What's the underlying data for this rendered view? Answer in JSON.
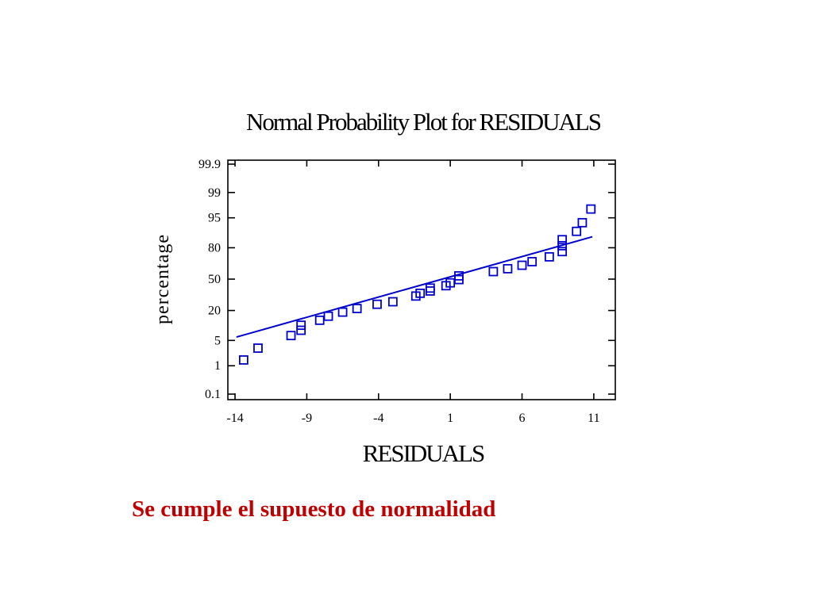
{
  "caption": "Se cumple el supuesto de normalidad",
  "colors": {
    "series": "#0000cc",
    "caption": "#c00000",
    "axis": "#000000"
  },
  "chart_data": {
    "type": "scatter",
    "title": "Normal Probability Plot for RESIDUALS",
    "xlabel": "RESIDUALS",
    "ylabel": "percentage",
    "xlim": [
      -14.5,
      12.5
    ],
    "x_ticks": [
      -14,
      -9,
      -4,
      1,
      6,
      11
    ],
    "x_tick_labels": [
      "-14",
      "-9",
      "-4",
      "1",
      "6",
      "11"
    ],
    "y_scale": "normal-probability",
    "y_ticks": [
      0.1,
      1,
      5,
      20,
      50,
      80,
      95,
      99,
      99.9
    ],
    "y_tick_labels": [
      "0.1",
      "1",
      "5",
      "20",
      "50",
      "80",
      "95",
      "99",
      "99.9"
    ],
    "grid": false,
    "legend": "none",
    "marker": "square",
    "points": [
      {
        "x": -13.4,
        "y": 1.5
      },
      {
        "x": -12.4,
        "y": 3.2
      },
      {
        "x": -10.1,
        "y": 6.5
      },
      {
        "x": -9.4,
        "y": 8.5
      },
      {
        "x": -9.4,
        "y": 10.8
      },
      {
        "x": -8.1,
        "y": 13.5
      },
      {
        "x": -7.5,
        "y": 16.0
      },
      {
        "x": -6.5,
        "y": 18.8
      },
      {
        "x": -5.5,
        "y": 21.5
      },
      {
        "x": -4.1,
        "y": 25.0
      },
      {
        "x": -3.0,
        "y": 27.2
      },
      {
        "x": -1.4,
        "y": 32.5
      },
      {
        "x": -1.1,
        "y": 35.2
      },
      {
        "x": -0.4,
        "y": 37.5
      },
      {
        "x": -0.4,
        "y": 40.5
      },
      {
        "x": 0.7,
        "y": 43.0
      },
      {
        "x": 1.0,
        "y": 46.0
      },
      {
        "x": 1.6,
        "y": 49.5
      },
      {
        "x": 1.6,
        "y": 53.5
      },
      {
        "x": 4.0,
        "y": 58.0
      },
      {
        "x": 5.0,
        "y": 61.0
      },
      {
        "x": 6.0,
        "y": 64.5
      },
      {
        "x": 6.7,
        "y": 68.0
      },
      {
        "x": 7.9,
        "y": 72.5
      },
      {
        "x": 8.8,
        "y": 77.0
      },
      {
        "x": 8.8,
        "y": 81.5
      },
      {
        "x": 8.8,
        "y": 85.5
      },
      {
        "x": 9.8,
        "y": 90.0
      },
      {
        "x": 10.2,
        "y": 93.5
      },
      {
        "x": 10.8,
        "y": 97.0
      }
    ],
    "fit_line": {
      "x": [
        -13.9,
        10.9
      ],
      "y": [
        6.0,
        87.2
      ]
    }
  }
}
